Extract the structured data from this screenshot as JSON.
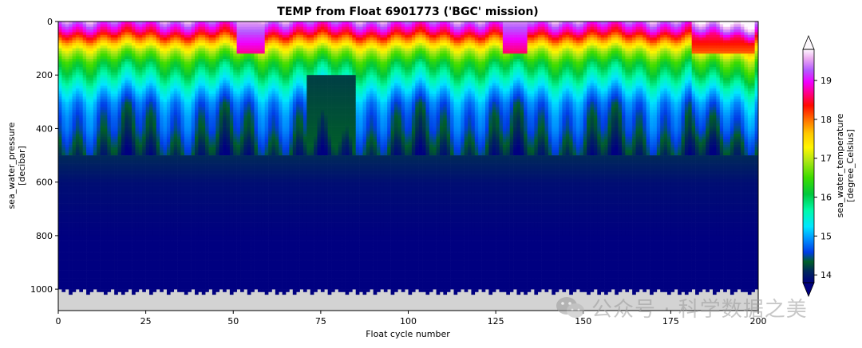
{
  "chart_data": {
    "type": "heatmap",
    "title": "TEMP from Float 6901773 ('BGC' mission)",
    "xlabel": "Float cycle number",
    "ylabel_lines": [
      "sea_water_pressure",
      "[decibar]"
    ],
    "xlim": [
      0,
      200
    ],
    "ylim": [
      1080,
      0
    ],
    "x_ticks": [
      0,
      25,
      50,
      75,
      100,
      125,
      150,
      175,
      200
    ],
    "y_ticks": [
      0,
      200,
      400,
      600,
      800,
      1000
    ],
    "colorbar": {
      "label_lines": [
        "sea_water_temperature",
        "[degree_Celsius]"
      ],
      "range": [
        13.8,
        19.8
      ],
      "ticks": [
        14,
        15,
        16,
        17,
        18,
        19
      ],
      "colormap": "gist_ncar",
      "extend": "both"
    },
    "background_color": "#d3d3d3",
    "profile_bottom_pressure": 1000,
    "depth_levels": [
      0,
      30,
      60,
      100,
      150,
      200,
      250,
      300,
      350,
      400,
      450,
      500,
      600,
      800,
      1000
    ],
    "typical_profile_temperature": [
      19.2,
      18.7,
      18.0,
      17.0,
      16.2,
      15.7,
      15.2,
      14.8,
      14.6,
      14.5,
      14.3,
      14.1,
      13.9,
      13.8,
      13.8
    ],
    "cycles_with_warm_surface": [
      {
        "from": 51,
        "to": 58,
        "surface_temperature": 19.5
      },
      {
        "from": 127,
        "to": 133,
        "surface_temperature": 19.4
      },
      {
        "from": 181,
        "to": 198,
        "surface_temperature": 18.4
      }
    ],
    "cycles_with_cold_intrusion": [
      {
        "from": 71,
        "to": 84,
        "pressure_range": [
          200,
          550
        ],
        "temperature": 14.2
      }
    ]
  },
  "watermark": {
    "icon": "wechat-icon",
    "text": "公众号 · 科学数据之美"
  }
}
